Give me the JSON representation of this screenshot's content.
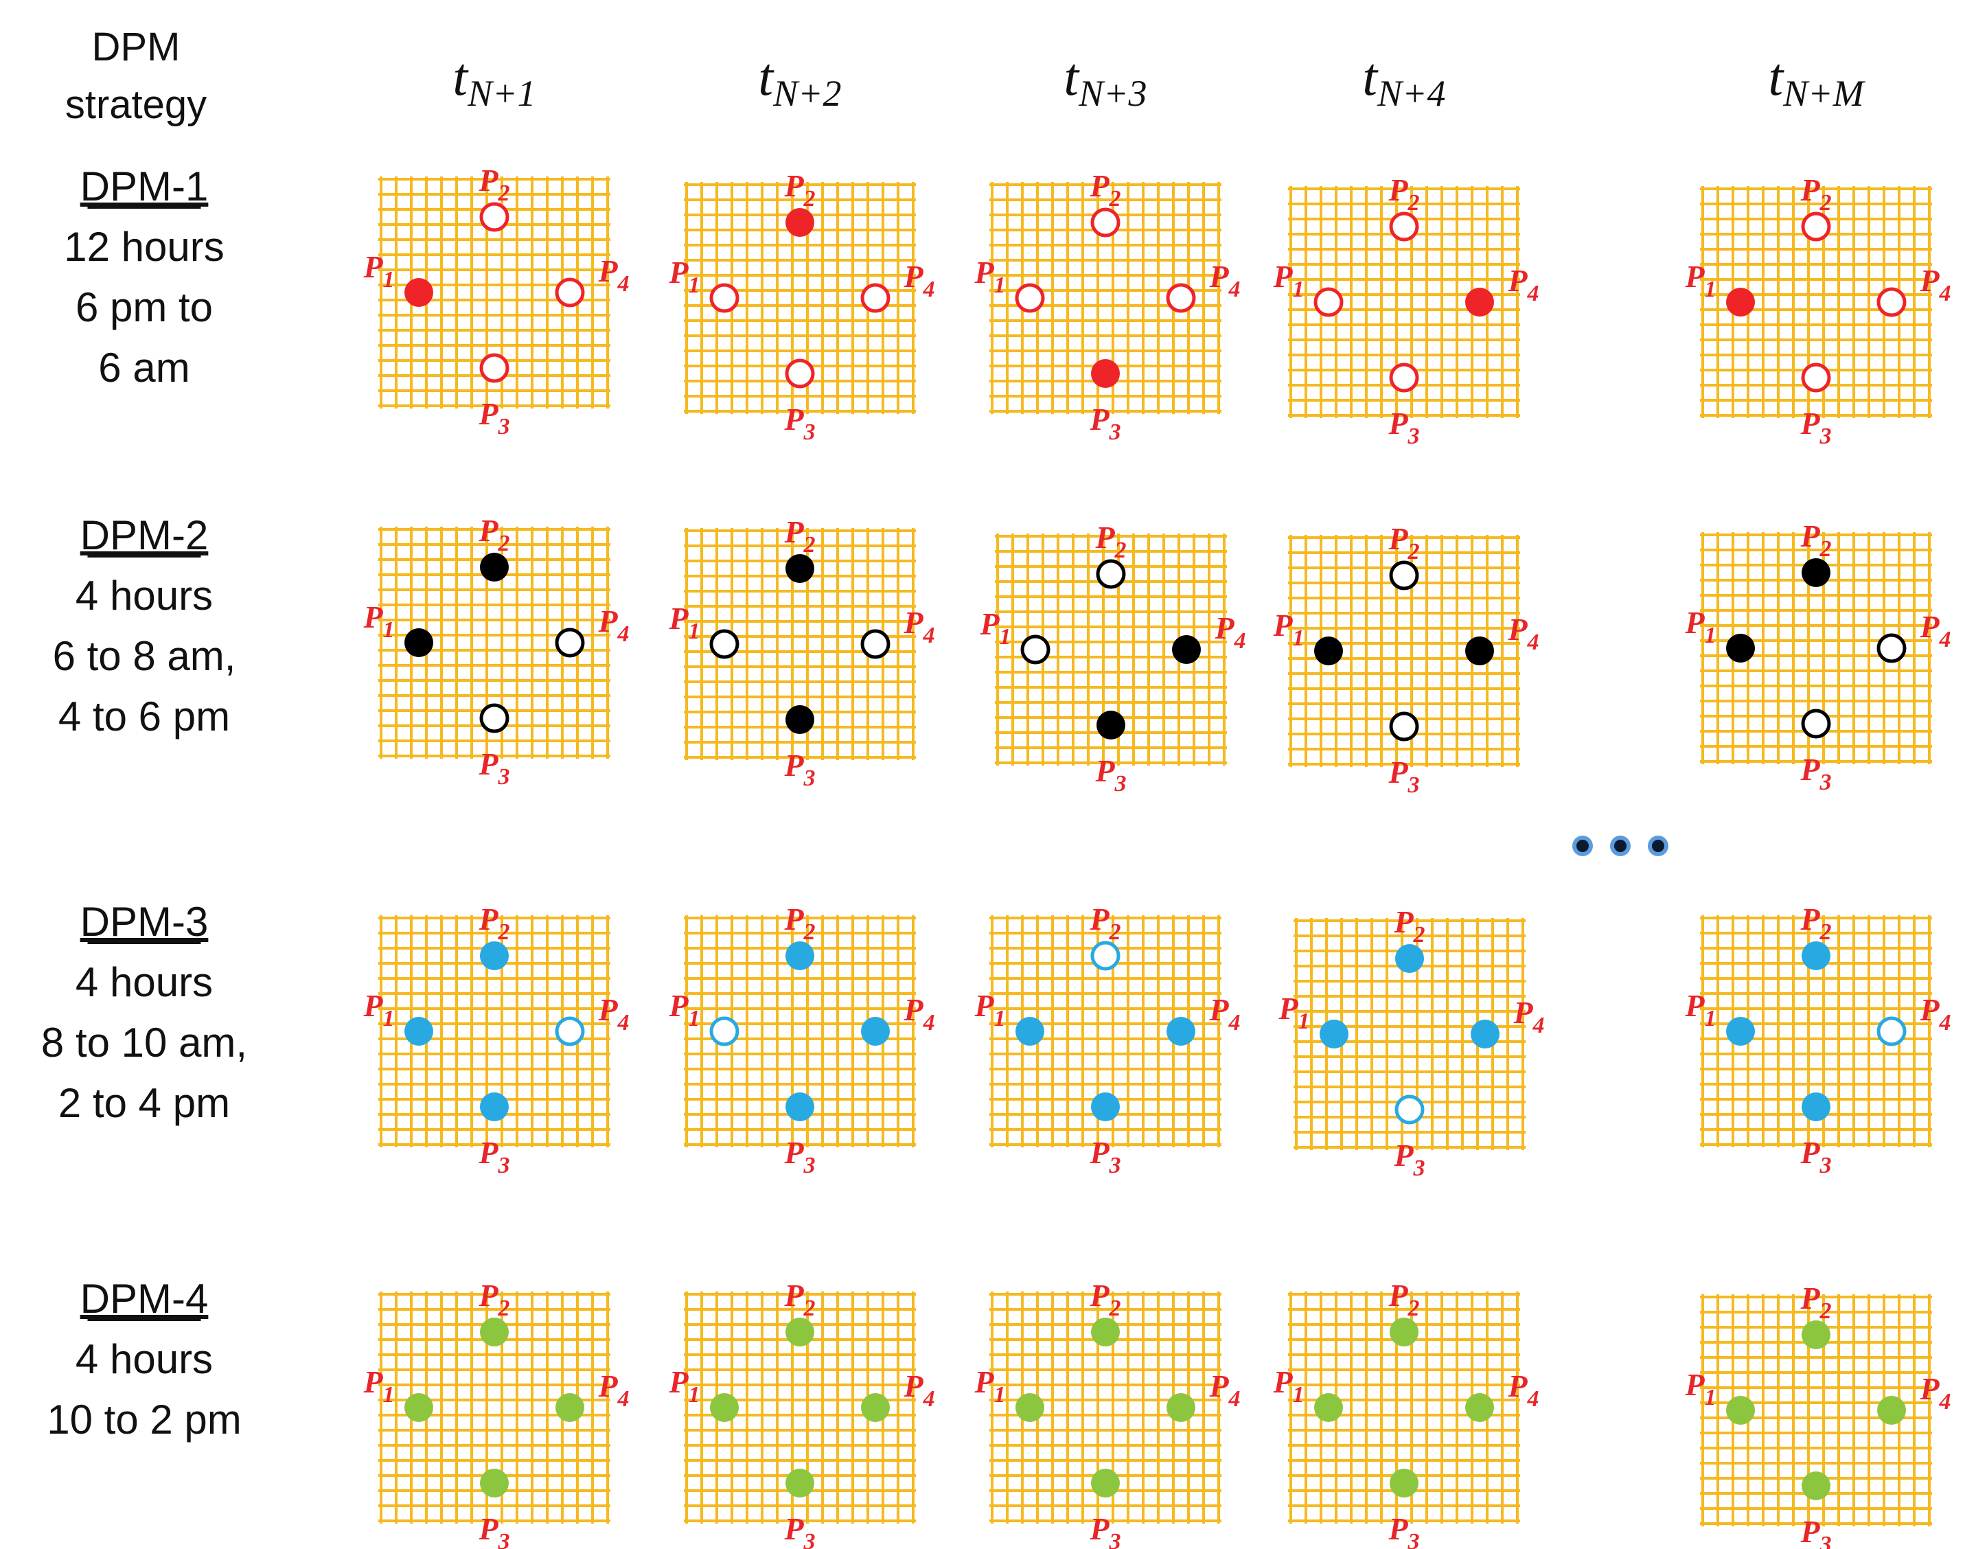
{
  "header": {
    "strategy_title_line1": "DPM",
    "strategy_title_line2": "strategy"
  },
  "columns": [
    {
      "label": "t",
      "sub": "N+1"
    },
    {
      "label": "t",
      "sub": "N+2"
    },
    {
      "label": "t",
      "sub": "N+3"
    },
    {
      "label": "t",
      "sub": "N+4"
    },
    {
      "label": "t",
      "sub": "N+M"
    }
  ],
  "ellipsis": "...",
  "point_labels": [
    {
      "letter": "P",
      "sub": "1"
    },
    {
      "letter": "P",
      "sub": "2"
    },
    {
      "letter": "P",
      "sub": "3"
    },
    {
      "letter": "P",
      "sub": "4"
    }
  ],
  "colors": {
    "grid": "#f5b921",
    "label": "#e8262a",
    "ellipsis_dot_fill": "#0b1a2e",
    "ellipsis_dot_ring": "#4a90d9"
  },
  "strategies": [
    {
      "name": "DPM-1",
      "lines": [
        "12 hours",
        "6 pm to",
        "6 am"
      ],
      "color": "#ee2428",
      "states": [
        [
          true,
          false,
          false,
          false
        ],
        [
          false,
          true,
          false,
          false
        ],
        [
          false,
          false,
          true,
          false
        ],
        [
          false,
          false,
          false,
          true
        ],
        [
          true,
          false,
          false,
          false
        ]
      ]
    },
    {
      "name": "DPM-2",
      "lines": [
        "4 hours",
        "6 to 8 am,",
        "4 to 6 pm"
      ],
      "color": "#000000",
      "states": [
        [
          true,
          true,
          false,
          false
        ],
        [
          false,
          true,
          true,
          false
        ],
        [
          false,
          false,
          true,
          true
        ],
        [
          true,
          false,
          false,
          true
        ],
        [
          true,
          true,
          false,
          false
        ]
      ]
    },
    {
      "name": "DPM-3",
      "lines": [
        "4 hours",
        "8 to 10 am,",
        "2 to 4 pm"
      ],
      "color": "#29a9e1",
      "states": [
        [
          true,
          true,
          true,
          false
        ],
        [
          false,
          true,
          true,
          true
        ],
        [
          true,
          false,
          true,
          true
        ],
        [
          true,
          true,
          false,
          true
        ],
        [
          true,
          true,
          true,
          false
        ]
      ]
    },
    {
      "name": "DPM-4",
      "lines": [
        "4 hours",
        "10 to 2 pm"
      ],
      "color": "#8cc63f",
      "states": [
        [
          true,
          true,
          true,
          true
        ],
        [
          true,
          true,
          true,
          true
        ],
        [
          true,
          true,
          true,
          true
        ],
        [
          true,
          true,
          true,
          true
        ],
        [
          true,
          true,
          true,
          true
        ]
      ]
    }
  ]
}
